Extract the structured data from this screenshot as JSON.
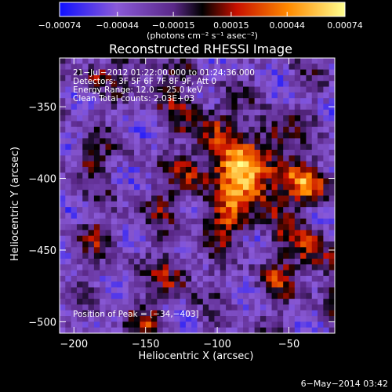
{
  "chart_data": {
    "type": "heatmap",
    "title": "Reconstructed RHESSI Image",
    "xlabel": "Heliocentric X (arcsec)",
    "ylabel": "Heliocentric Y (arcsec)",
    "xlim": [
      -210,
      -18
    ],
    "ylim": [
      -508,
      -316
    ],
    "x_ticks": [
      -200,
      -150,
      -100,
      -50
    ],
    "x_tick_labels": [
      "−200",
      "−150",
      "−100",
      "−50"
    ],
    "y_ticks": [
      -350,
      -400,
      -450,
      -500
    ],
    "y_tick_labels": [
      "−350",
      "−400",
      "−450",
      "−500"
    ],
    "colorbar": {
      "range": [
        -0.00074,
        0.00074
      ],
      "ticks": [
        -0.00074,
        -0.00044,
        -0.00015,
        0.00015,
        0.00044,
        0.00074
      ],
      "tick_labels": [
        "−0.00074",
        "−0.00044",
        "−0.00015",
        "0.00015",
        "0.00044",
        "0.00074"
      ],
      "units": "(photons cm⁻² s⁻¹ asec⁻²)"
    },
    "info_lines": [
      "21−Jul−2012 01:22:00.000 to 01:24:36.000",
      "Detectors: 3F 5F 6F 7F 8F 9F, Att 0",
      "Energy Range: 12.0 − 25.0 keV",
      "Clean     Total counts: 2.03E+03"
    ],
    "peak_label": "Position of Peak = [−34,−403]",
    "peak": [
      -34,
      -403
    ],
    "grid": false,
    "colormap": "rhessi-diverging",
    "colormap_stops": [
      "#1010ff",
      "#8a5ad8",
      "#5a2888",
      "#000000",
      "#c81000",
      "#ff8a00",
      "#ffff90"
    ]
  },
  "footer": {
    "date": "6−May−2014 03:42"
  }
}
